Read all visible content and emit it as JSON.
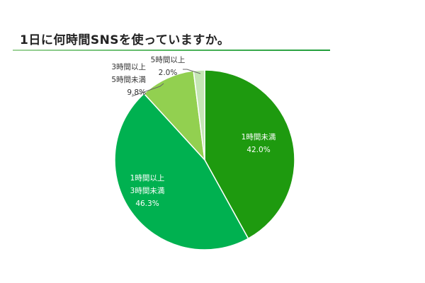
{
  "title": "1日に何時間SNSを使っていますか。",
  "colors": {
    "s1": "#1e9a0f",
    "s2": "#00b150",
    "s3": "#92d050",
    "s4": "#c5e6b4",
    "label_dark": "#333333",
    "label_light": "#ffffff"
  },
  "chart_data": {
    "type": "pie",
    "title": "1日に何時間SNSを使っていますか。",
    "start": "12 o'clock, clockwise",
    "slices": [
      {
        "label_lines": [
          "1時間未満"
        ],
        "value": 42.0,
        "value_text": "42.0%",
        "label_position": "inside"
      },
      {
        "label_lines": [
          "1時間以上",
          "3時間未満"
        ],
        "value": 46.3,
        "value_text": "46.3%",
        "label_position": "inside"
      },
      {
        "label_lines": [
          "3時間以上",
          "5時間未満"
        ],
        "value": 9.8,
        "value_text": "9.8%",
        "label_position": "outside"
      },
      {
        "label_lines": [
          "5時間以上"
        ],
        "value": 2.0,
        "value_text": "2.0%",
        "label_position": "outside"
      }
    ]
  }
}
